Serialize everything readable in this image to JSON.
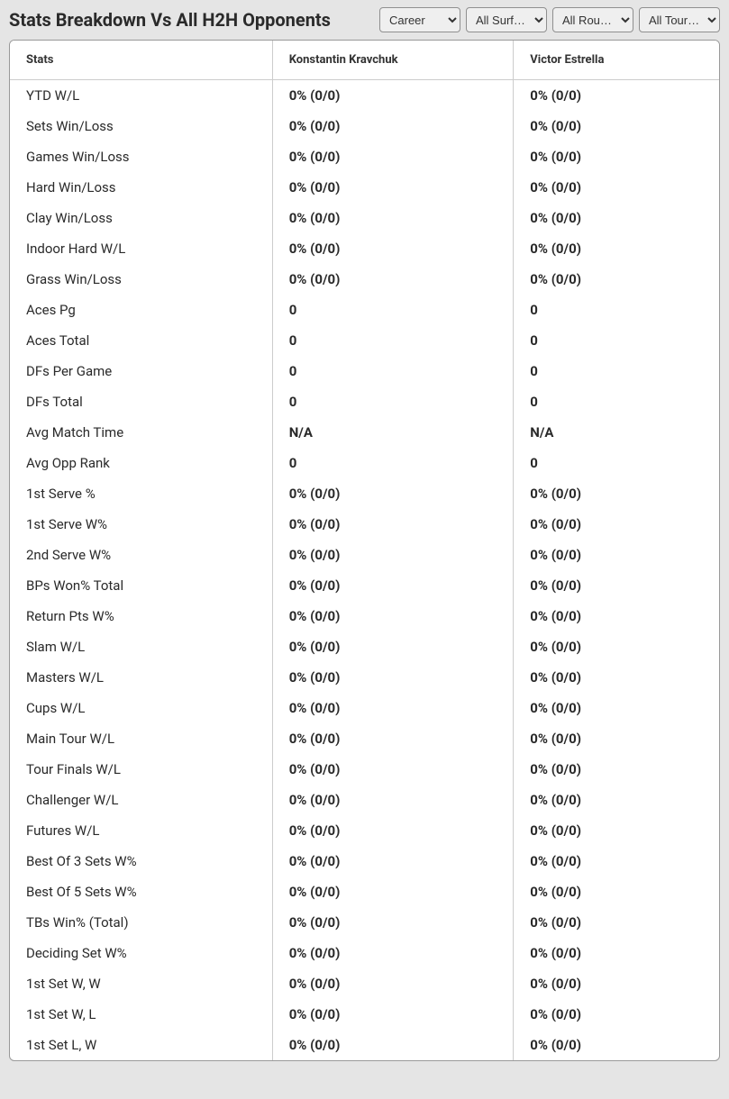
{
  "header": {
    "title": "Stats Breakdown Vs All H2H Opponents"
  },
  "selectors": {
    "career": "Career",
    "surface": "All Surf…",
    "round": "All Rou…",
    "tournament": "All Tour…"
  },
  "table": {
    "columns": {
      "stats": "Stats",
      "player1": "Konstantin Kravchuk",
      "player2": "Victor Estrella"
    },
    "rows": [
      {
        "stat": "YTD W/L",
        "p1": "0% (0/0)",
        "p2": "0% (0/0)"
      },
      {
        "stat": "Sets Win/Loss",
        "p1": "0% (0/0)",
        "p2": "0% (0/0)"
      },
      {
        "stat": "Games Win/Loss",
        "p1": "0% (0/0)",
        "p2": "0% (0/0)"
      },
      {
        "stat": "Hard Win/Loss",
        "p1": "0% (0/0)",
        "p2": "0% (0/0)"
      },
      {
        "stat": "Clay Win/Loss",
        "p1": "0% (0/0)",
        "p2": "0% (0/0)"
      },
      {
        "stat": "Indoor Hard W/L",
        "p1": "0% (0/0)",
        "p2": "0% (0/0)"
      },
      {
        "stat": "Grass Win/Loss",
        "p1": "0% (0/0)",
        "p2": "0% (0/0)"
      },
      {
        "stat": "Aces Pg",
        "p1": "0",
        "p2": "0"
      },
      {
        "stat": "Aces Total",
        "p1": "0",
        "p2": "0"
      },
      {
        "stat": "DFs Per Game",
        "p1": "0",
        "p2": "0"
      },
      {
        "stat": "DFs Total",
        "p1": "0",
        "p2": "0"
      },
      {
        "stat": "Avg Match Time",
        "p1": "N/A",
        "p2": "N/A"
      },
      {
        "stat": "Avg Opp Rank",
        "p1": "0",
        "p2": "0"
      },
      {
        "stat": "1st Serve %",
        "p1": "0% (0/0)",
        "p2": "0% (0/0)"
      },
      {
        "stat": "1st Serve W%",
        "p1": "0% (0/0)",
        "p2": "0% (0/0)"
      },
      {
        "stat": "2nd Serve W%",
        "p1": "0% (0/0)",
        "p2": "0% (0/0)"
      },
      {
        "stat": "BPs Won% Total",
        "p1": "0% (0/0)",
        "p2": "0% (0/0)"
      },
      {
        "stat": "Return Pts W%",
        "p1": "0% (0/0)",
        "p2": "0% (0/0)"
      },
      {
        "stat": "Slam W/L",
        "p1": "0% (0/0)",
        "p2": "0% (0/0)"
      },
      {
        "stat": "Masters W/L",
        "p1": "0% (0/0)",
        "p2": "0% (0/0)"
      },
      {
        "stat": "Cups W/L",
        "p1": "0% (0/0)",
        "p2": "0% (0/0)"
      },
      {
        "stat": "Main Tour W/L",
        "p1": "0% (0/0)",
        "p2": "0% (0/0)"
      },
      {
        "stat": "Tour Finals W/L",
        "p1": "0% (0/0)",
        "p2": "0% (0/0)"
      },
      {
        "stat": "Challenger W/L",
        "p1": "0% (0/0)",
        "p2": "0% (0/0)"
      },
      {
        "stat": "Futures W/L",
        "p1": "0% (0/0)",
        "p2": "0% (0/0)"
      },
      {
        "stat": "Best Of 3 Sets W%",
        "p1": "0% (0/0)",
        "p2": "0% (0/0)"
      },
      {
        "stat": "Best Of 5 Sets W%",
        "p1": "0% (0/0)",
        "p2": "0% (0/0)"
      },
      {
        "stat": "TBs Win% (Total)",
        "p1": "0% (0/0)",
        "p2": "0% (0/0)"
      },
      {
        "stat": "Deciding Set W%",
        "p1": "0% (0/0)",
        "p2": "0% (0/0)"
      },
      {
        "stat": "1st Set W, W",
        "p1": "0% (0/0)",
        "p2": "0% (0/0)"
      },
      {
        "stat": "1st Set W, L",
        "p1": "0% (0/0)",
        "p2": "0% (0/0)"
      },
      {
        "stat": "1st Set L, W",
        "p1": "0% (0/0)",
        "p2": "0% (0/0)"
      }
    ]
  }
}
